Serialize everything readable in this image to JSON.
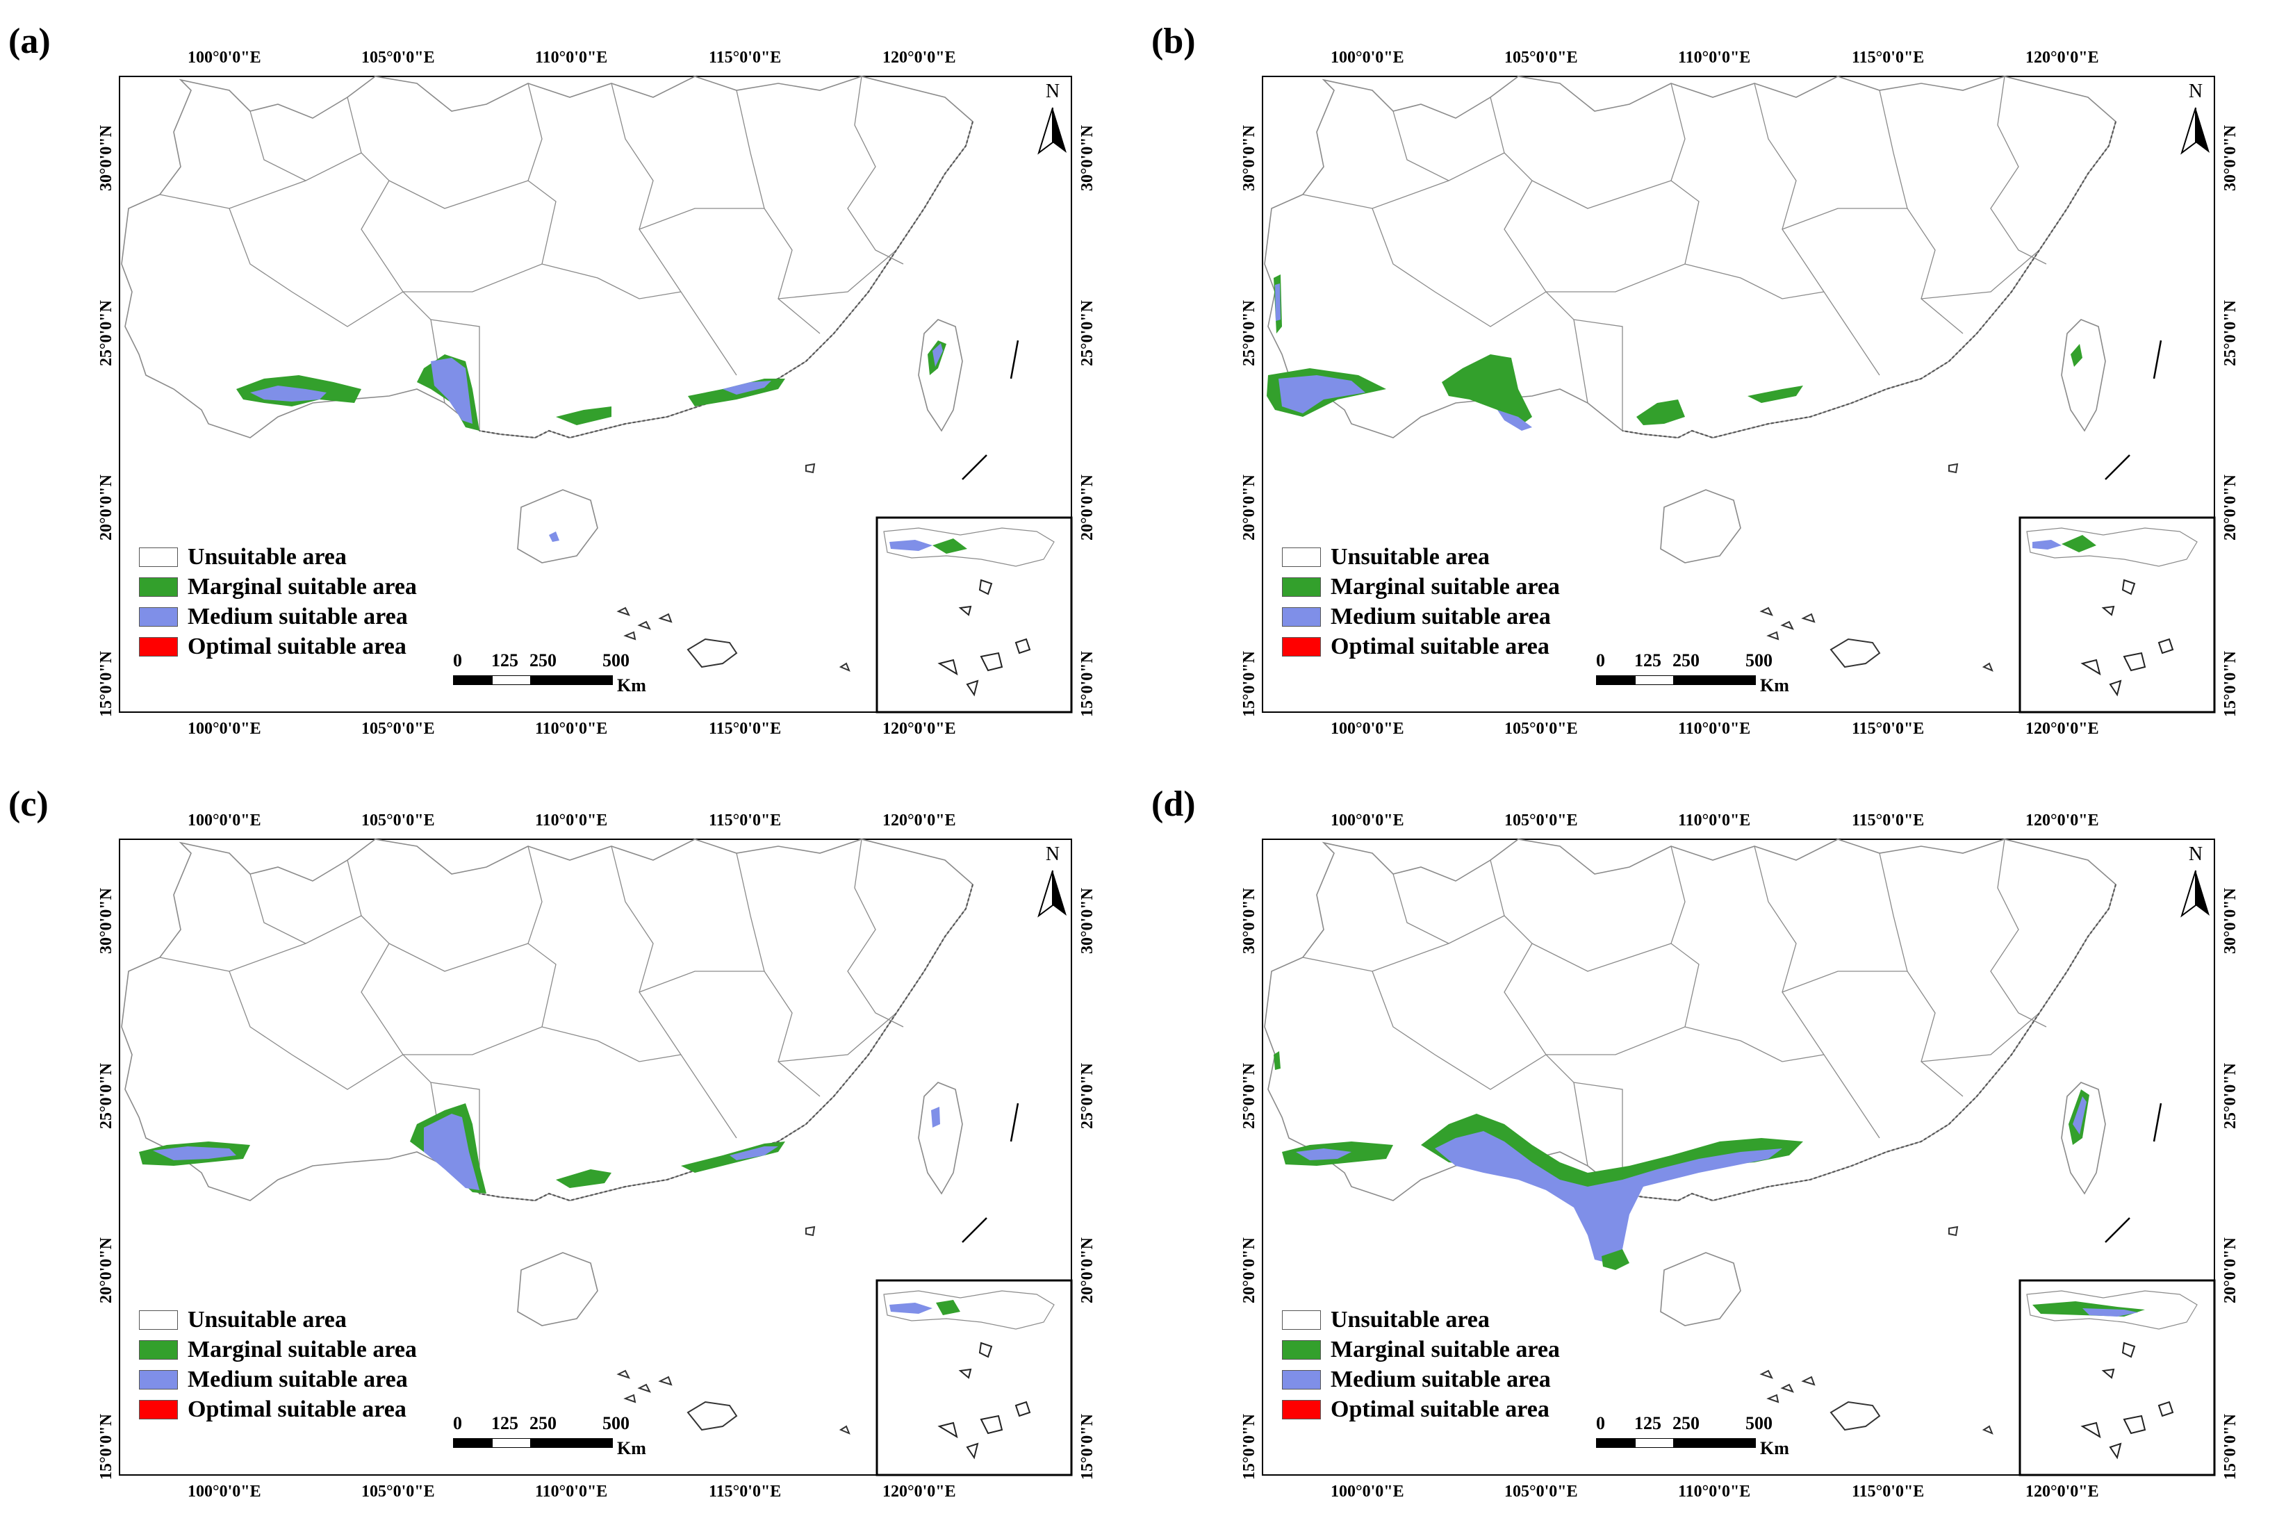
{
  "figure_title": "",
  "legend": [
    {
      "label": "Unsuitable area",
      "color": "#ffffff"
    },
    {
      "label": "Marginal suitable area",
      "color": "#33a02c"
    },
    {
      "label": "Medium suitable area",
      "color": "#7f8fe8"
    },
    {
      "label": "Optimal suitable area",
      "color": "#ff0000"
    }
  ],
  "longitude_ticks": [
    "100°0'0\"E",
    "105°0'0\"E",
    "110°0'0\"E",
    "115°0'0\"E",
    "120°0'0\"E"
  ],
  "latitude_ticks": [
    "30°0'0\"N",
    "25°0'0\"N",
    "20°0'0\"N",
    "15°0'0\"N"
  ],
  "scale": {
    "labels": [
      "0",
      "125",
      "250",
      "500"
    ],
    "units": "Km"
  },
  "north_label": "N",
  "colors": {
    "marginal": "#33a02c",
    "medium": "#7f8fe8",
    "optimal": "#ff0000",
    "boundary": "#8a8a8a"
  },
  "panels": [
    {
      "label": "(a)",
      "scenario": "a"
    },
    {
      "label": "(b)",
      "scenario": "b"
    },
    {
      "label": "(c)",
      "scenario": "c"
    },
    {
      "label": "(d)",
      "scenario": "d"
    }
  ]
}
